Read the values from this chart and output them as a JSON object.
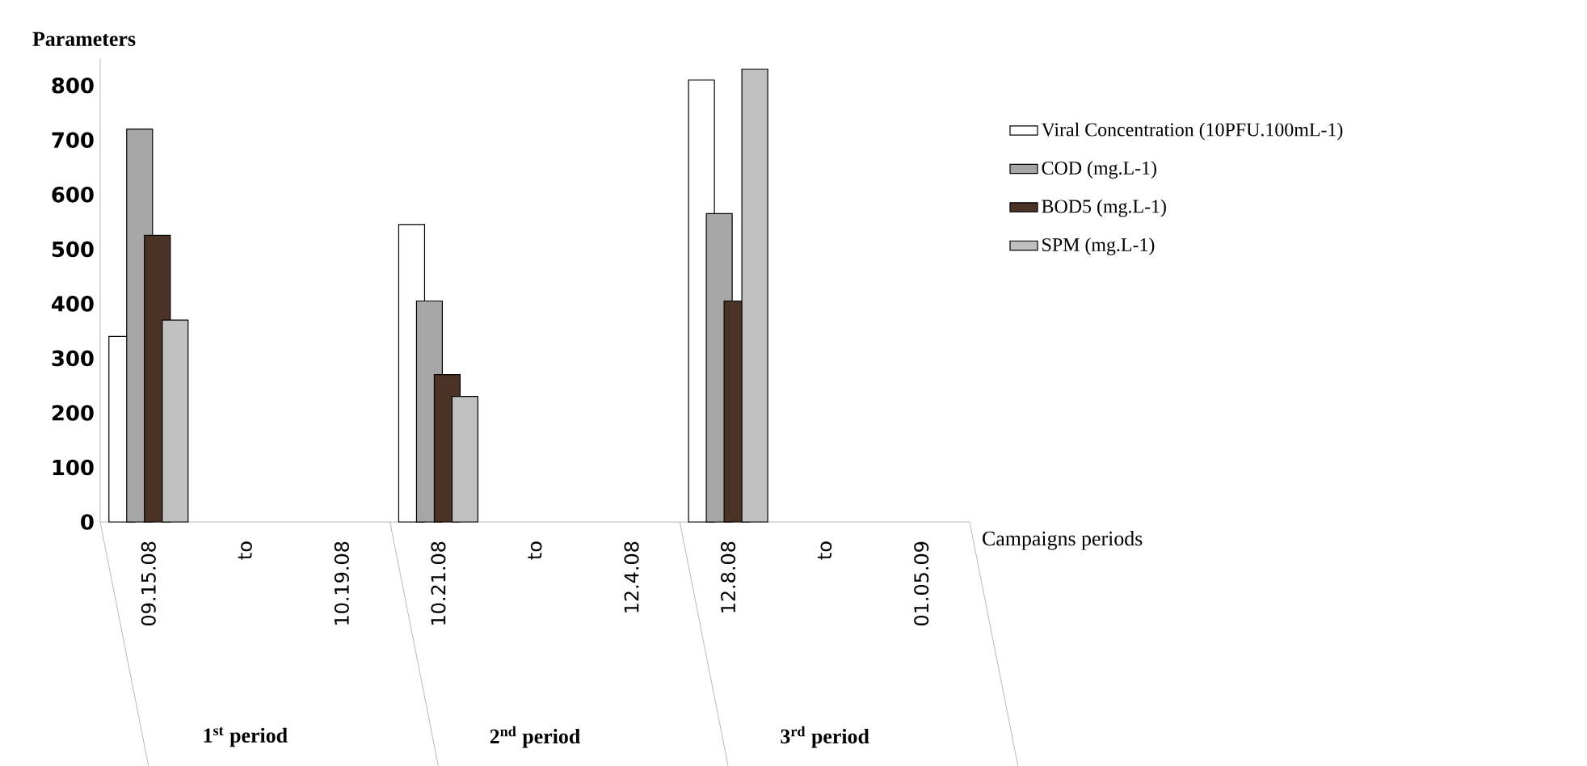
{
  "chart_data": {
    "type": "bar",
    "ylabel": "Parameters",
    "xlabel": "Campaigns periods",
    "categories": [
      "09.15.08",
      "to",
      "10.19.08",
      "10.21.08",
      "to",
      "12.4.08",
      "12.8.08",
      "to",
      "01.05.09"
    ],
    "series": [
      {
        "name": "Viral Concentration (10PFU.100mL-1)",
        "color": "#ffffff",
        "values": [
          340,
          null,
          null,
          545,
          null,
          null,
          810,
          null,
          null
        ]
      },
      {
        "name": "COD (mg.L-1)",
        "color": "#a6a6a6",
        "values": [
          720,
          null,
          null,
          405,
          null,
          null,
          565,
          null,
          null
        ]
      },
      {
        "name": "BOD5 (mg.L-1)",
        "color": "#4a3225",
        "values": [
          525,
          null,
          null,
          270,
          null,
          null,
          405,
          null,
          null
        ]
      },
      {
        "name": "SPM (mg.L-1)",
        "color": "#c0c0c0",
        "values": [
          370,
          null,
          null,
          230,
          null,
          null,
          830,
          null,
          null
        ]
      }
    ],
    "ylim": [
      0,
      850
    ],
    "yticks": [
      0,
      100,
      200,
      300,
      400,
      500,
      600,
      700,
      800
    ],
    "annotations": [
      "1$^{st}$ period",
      "2$^{nd}$ period",
      "3$^{rd}$ period"
    ],
    "legend": "right"
  }
}
